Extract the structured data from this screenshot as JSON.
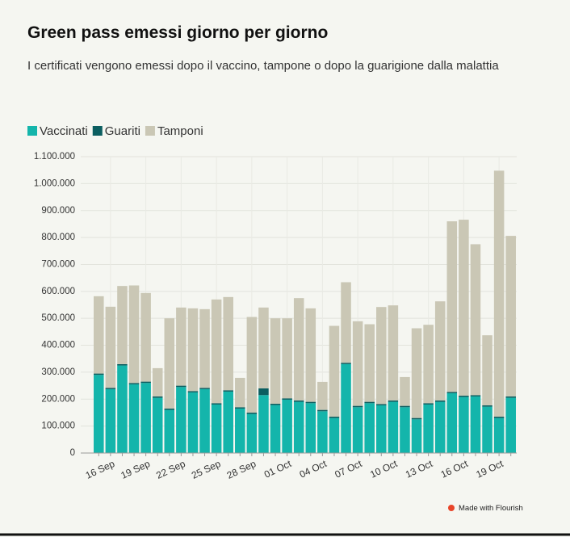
{
  "chart_data": {
    "type": "stacked_bar",
    "title": "Green pass emessi giorno per giorno",
    "subtitle": "I certificati vengono emessi dopo il vaccino, tampone o dopo la guarigione dalla malattia",
    "footer": "Made with Flourish",
    "categories": [
      null,
      "16 Sep",
      null,
      null,
      "19 Sep",
      null,
      null,
      "22 Sep",
      null,
      null,
      "25 Sep",
      null,
      null,
      "28 Sep",
      null,
      null,
      "01 Oct",
      null,
      null,
      "04 Oct",
      null,
      null,
      "07 Oct",
      null,
      null,
      "10 Oct",
      null,
      null,
      "13 Oct",
      null,
      null,
      "16 Oct",
      null,
      null,
      "19 Oct",
      null
    ],
    "series": [
      {
        "name": "Vaccinati",
        "color": "#14b5ab",
        "values": [
          290000,
          237000,
          325000,
          255000,
          260000,
          205000,
          160000,
          245000,
          225000,
          237000,
          180000,
          228000,
          165000,
          145000,
          215000,
          178000,
          198000,
          190000,
          185000,
          155000,
          130000,
          330000,
          170000,
          185000,
          177000,
          190000,
          170000,
          125000,
          180000,
          190000,
          222000,
          208000,
          210000,
          172000,
          130000,
          205000
        ]
      },
      {
        "name": "Guariti",
        "color": "#0b5e60",
        "values": [
          5000,
          5000,
          5000,
          5000,
          5000,
          5000,
          5000,
          5000,
          5000,
          5000,
          5000,
          5000,
          5000,
          5000,
          25000,
          5000,
          5000,
          5000,
          5000,
          5000,
          5000,
          5000,
          5000,
          5000,
          5000,
          5000,
          5000,
          5000,
          5000,
          5000,
          5000,
          5000,
          5000,
          5000,
          5000,
          5000
        ]
      },
      {
        "name": "Tamponi",
        "color": "#cac7b5",
        "values": [
          287000,
          301000,
          290000,
          362000,
          329000,
          105000,
          335000,
          290000,
          307000,
          292000,
          385000,
          346000,
          109000,
          355000,
          300000,
          317000,
          297000,
          380000,
          347000,
          104000,
          337000,
          299000,
          314000,
          288000,
          360000,
          353000,
          107000,
          333000,
          291000,
          368000,
          633000,
          653000,
          560000,
          260000,
          913000,
          596000
        ]
      }
    ],
    "ylim": [
      0,
      1100000
    ],
    "yticks": [
      0,
      {
        "value": 100000,
        "label": "100.000"
      },
      {
        "value": 200000,
        "label": "200.000"
      },
      {
        "value": 300000,
        "label": "300.000"
      },
      {
        "value": 400000,
        "label": "400.000"
      },
      {
        "value": 500000,
        "label": "500.000"
      },
      {
        "value": 600000,
        "label": "600.000"
      },
      {
        "value": 700000,
        "label": "700.000"
      },
      {
        "value": 800000,
        "label": "800.000"
      },
      {
        "value": 900000,
        "label": "900.000"
      },
      {
        "value": 1000000,
        "label": "1.000.000"
      },
      {
        "value": 1100000,
        "label": "1.100.000"
      }
    ],
    "grid": true,
    "legend": "top-left"
  }
}
